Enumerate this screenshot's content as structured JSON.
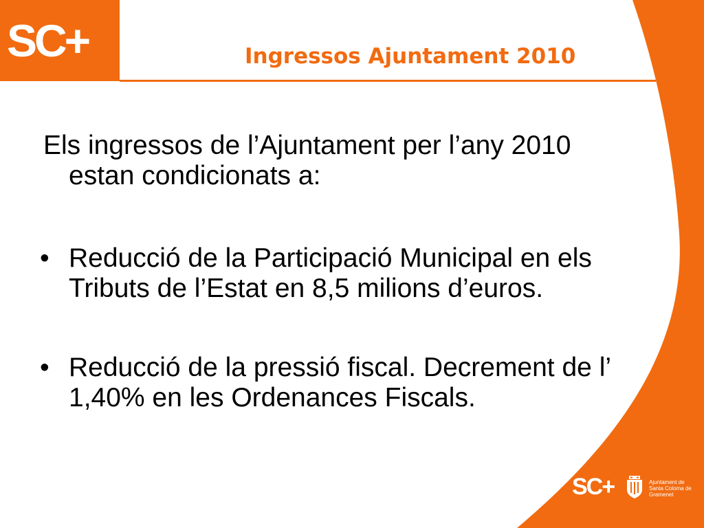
{
  "header": {
    "logo_text": "SC+",
    "title": "Ingressos Ajuntament 2010"
  },
  "content": {
    "intro_line1": "Els ingressos de l’Ajuntament per l’any 2010",
    "intro_line2": "estan condicionats a:",
    "bullets": [
      {
        "marker": "•",
        "text": "Reducció de la Participació Municipal en els Tributs de l’Estat en 8,5 milions d’euros."
      },
      {
        "marker": "•",
        "text": "Reducció de la pressió fiscal. Decrement de l’ 1,40% en les Ordenances Fiscals."
      }
    ]
  },
  "footer": {
    "logo_text": "SC+",
    "seal_icon": "city-coat-of-arms-icon",
    "caption": "Ajuntament de Santa Coloma de Gramenet"
  },
  "colors": {
    "accent": "#f26b10",
    "text": "#000000",
    "background": "#ffffff"
  }
}
